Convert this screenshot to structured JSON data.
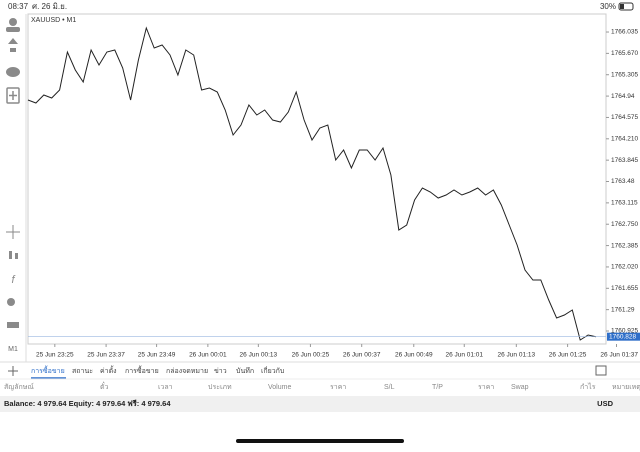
{
  "status_bar": {
    "time": "08:37",
    "date": "ศ. 26 มิ.ย.",
    "battery": "30%"
  },
  "chart_data": {
    "type": "line",
    "title": "XAUUSD • M1",
    "timeframe": "M1",
    "color": "#222222",
    "values": [
      1764.873,
      1764.822,
      1764.958,
      1764.907,
      1765.044,
      1765.693,
      1765.386,
      1765.18,
      1765.727,
      1765.471,
      1765.693,
      1765.727,
      1765.42,
      1764.873,
      1765.556,
      1766.103,
      1765.762,
      1765.813,
      1765.642,
      1765.3,
      1765.727,
      1765.642,
      1765.044,
      1765.078,
      1765.01,
      1764.702,
      1764.275,
      1764.446,
      1764.787,
      1764.617,
      1764.702,
      1764.531,
      1764.497,
      1764.668,
      1765.01,
      1764.531,
      1764.189,
      1764.394,
      1764.446,
      1763.847,
      1764.018,
      1763.711,
      1764.018,
      1764.018,
      1763.847,
      1764.053,
      1763.591,
      1762.651,
      1762.737,
      1763.164,
      1763.369,
      1763.301,
      1763.198,
      1763.249,
      1763.335,
      1763.249,
      1763.301,
      1763.369,
      1763.249,
      1763.335,
      1763.078,
      1762.737,
      1762.395,
      1761.968,
      1761.797,
      1761.797,
      1761.455,
      1761.147,
      1761.199,
      1761.284,
      1760.771,
      1760.857,
      1760.828
    ],
    "xlim": [
      0,
      72
    ],
    "xticks": [
      {
        "value": 3.4,
        "label": "25 Jun 23:25"
      },
      {
        "value": 9.9,
        "label": "25 Jun 23:37"
      },
      {
        "value": 16.3,
        "label": "25 Jun 23:49"
      },
      {
        "value": 22.8,
        "label": "26 Jun 00:01"
      },
      {
        "value": 29.2,
        "label": "26 Jun 00:13"
      },
      {
        "value": 35.8,
        "label": "26 Jun 00:25"
      },
      {
        "value": 42.3,
        "label": "26 Jun 00:37"
      },
      {
        "value": 48.9,
        "label": "26 Jun 00:49"
      },
      {
        "value": 55.3,
        "label": "26 Jun 01:01"
      },
      {
        "value": 61.9,
        "label": "26 Jun 01:13"
      },
      {
        "value": 68.4,
        "label": "26 Jun 01:25"
      },
      {
        "value": 74.6,
        "label": "26 Jun 01:37"
      }
    ],
    "ylim": [
      1760.72,
      1766.343
    ],
    "yticks": [
      1766.035,
      {
        "value": 1765.67,
        "label": "1765.670"
      },
      1765.305,
      1764.94,
      1764.575,
      {
        "value": 1764.21,
        "label": "1764.210"
      },
      1763.845,
      1763.48,
      1763.115,
      {
        "value": 1762.75,
        "label": "1762.750"
      },
      1762.385,
      {
        "value": 1762.02,
        "label": "1762.020"
      },
      1761.655,
      1761.29,
      1760.925
    ],
    "current_price": 1760.828
  },
  "tabs": [
    "การซื้อขาย",
    "สถานะ",
    "ค่าตั้ง",
    "การซื้อขาย",
    "กล่องจดหมาย",
    "ข่าว",
    "บันทึก",
    "เกี่ยวกับ"
  ],
  "table": {
    "columns": [
      "สัญลักษณ์",
      "ตั๋ว",
      "เวลา",
      "ประเภท",
      "Volume",
      "ราคา",
      "S/L",
      "T/P",
      "ราคา",
      "Swap",
      "กำไร",
      "หมายเหตุ"
    ]
  },
  "balance": {
    "text": "Balance: 4 979.64 Equity: 4 979.64 ฟรี: 4 979.64",
    "currency": "USD"
  }
}
